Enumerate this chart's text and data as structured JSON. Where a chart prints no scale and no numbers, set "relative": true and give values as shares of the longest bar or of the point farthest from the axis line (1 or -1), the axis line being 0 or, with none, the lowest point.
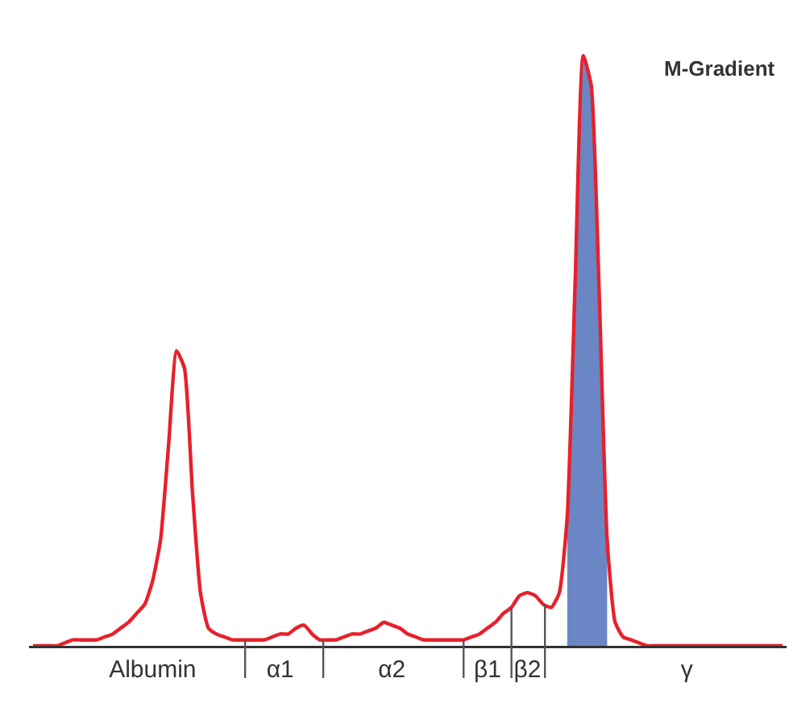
{
  "chart_data": {
    "type": "line",
    "relative": true,
    "legend": false,
    "grid": false,
    "marker": "none",
    "line_style": "solid",
    "categories": [
      null,
      null,
      null,
      null,
      null,
      null,
      null,
      null,
      null,
      null,
      null,
      null,
      null,
      null,
      null,
      "Albumin",
      null,
      null,
      null,
      null,
      null,
      null,
      null,
      null,
      null,
      null,
      null,
      null,
      null,
      null,
      null,
      "α1",
      null,
      null,
      null,
      null,
      null,
      null,
      null,
      null,
      null,
      null,
      null,
      null,
      null,
      "α2",
      null,
      null,
      null,
      null,
      null,
      null,
      null,
      null,
      null,
      null,
      null,
      "β1",
      null,
      null,
      null,
      null,
      "β2",
      null,
      null,
      null,
      null,
      null,
      null,
      null,
      null,
      null,
      null,
      null,
      null,
      null,
      null,
      null,
      null,
      null,
      null,
      null,
      "γ",
      null,
      null,
      null,
      null,
      null,
      null,
      null,
      null,
      null,
      null,
      null,
      null
    ],
    "annotations": [
      "M-Gradient"
    ],
    "series": [
      {
        "color": "#e8202a",
        "values": [
          0,
          0,
          0,
          0,
          0.005,
          0.01,
          0.01,
          0.01,
          0.01,
          0.015,
          0.02,
          0.03,
          0.04,
          0.055,
          0.07,
          0.11,
          0.18,
          0.34,
          0.5,
          0.47,
          0.26,
          0.09,
          0.03,
          0.02,
          0.015,
          0.01,
          0.01,
          0.01,
          0.01,
          0.01,
          0.015,
          0.02,
          0.02,
          0.03,
          0.035,
          0.02,
          0.01,
          0.01,
          0.01,
          0.015,
          0.02,
          0.02,
          0.025,
          0.03,
          0.04,
          0.035,
          0.03,
          0.02,
          0.015,
          0.01,
          0.01,
          0.01,
          0.01,
          0.01,
          0.01,
          0.015,
          0.02,
          0.03,
          0.04,
          0.055,
          0.065,
          0.085,
          0.09,
          0.085,
          0.07,
          0.065,
          0.09,
          0.22,
          0.62,
          1,
          0.95,
          0.6,
          0.18,
          0.04,
          0.015,
          0.01,
          0.005,
          0,
          0,
          0,
          0,
          0,
          0,
          0,
          0,
          0,
          0,
          0,
          0,
          0,
          0,
          0,
          0,
          0,
          0
        ]
      },
      {
        "type": "area",
        "color": "#6a86c4",
        "values": [
          null,
          null,
          null,
          null,
          null,
          null,
          null,
          null,
          null,
          null,
          null,
          null,
          null,
          null,
          null,
          null,
          null,
          null,
          null,
          null,
          null,
          null,
          null,
          null,
          null,
          null,
          null,
          null,
          null,
          null,
          null,
          null,
          null,
          null,
          null,
          null,
          null,
          null,
          null,
          null,
          null,
          null,
          null,
          null,
          null,
          null,
          null,
          null,
          null,
          null,
          null,
          null,
          null,
          null,
          null,
          null,
          null,
          null,
          null,
          null,
          null,
          null,
          null,
          null,
          null,
          null,
          null,
          0.22,
          0.62,
          1,
          0.95,
          0.6,
          0.18,
          null,
          null,
          null,
          null,
          null,
          null,
          null,
          null,
          null,
          null,
          null,
          null,
          null,
          null,
          null,
          null,
          null,
          null,
          null,
          null,
          null,
          null
        ]
      }
    ]
  }
}
